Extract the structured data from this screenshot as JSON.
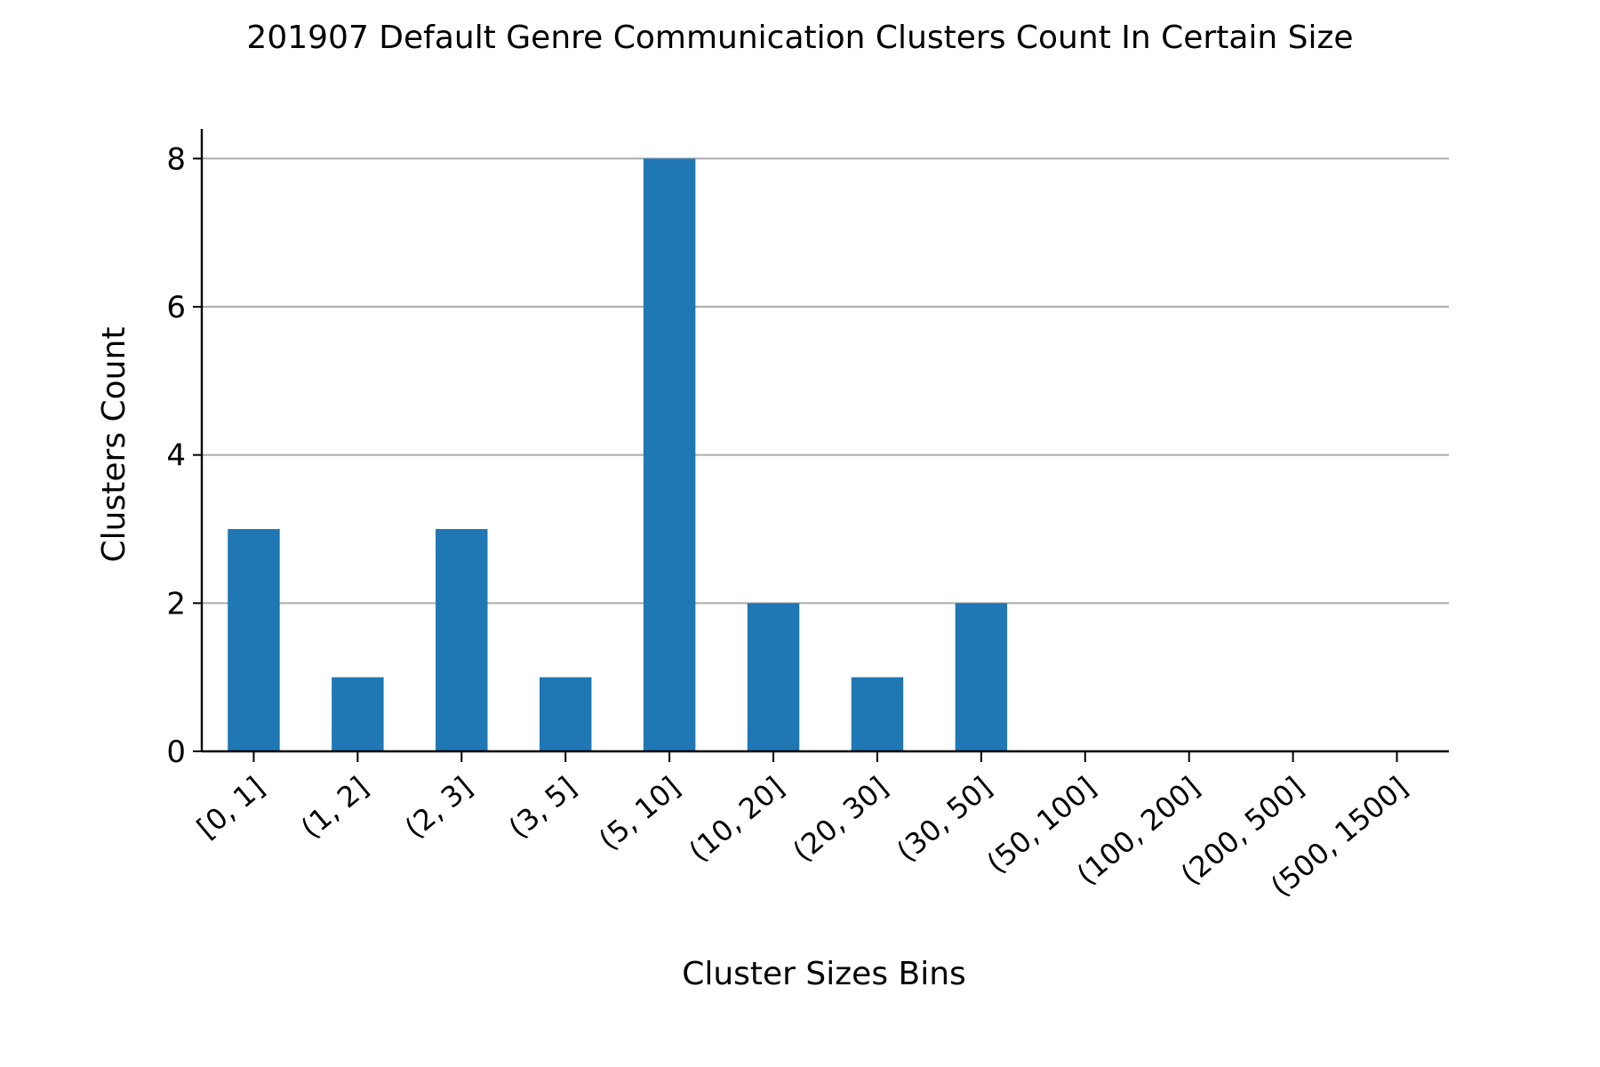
{
  "chart_data": {
    "type": "bar",
    "title": "201907 Default Genre Communication Clusters Count In Certain Size",
    "xlabel": "Cluster Sizes Bins",
    "ylabel": "Clusters Count",
    "categories": [
      "[0, 1]",
      "(1, 2]",
      "(2, 3]",
      "(3, 5]",
      "(5, 10]",
      "(10, 20]",
      "(20, 30]",
      "(30, 50]",
      "(50, 100]",
      "(100, 200]",
      "(200, 500]",
      "(500, 1500]"
    ],
    "values": [
      3,
      1,
      3,
      1,
      8,
      2,
      1,
      2,
      0,
      0,
      0,
      0
    ],
    "ylim": [
      0,
      8.4
    ],
    "yticks": [
      "0",
      "2",
      "4",
      "6",
      "8"
    ],
    "grid": "horizontal",
    "legend": "none",
    "colors": {
      "bar": "#1f77b4",
      "grid": "#b0b0b0",
      "axis": "#000000"
    }
  }
}
